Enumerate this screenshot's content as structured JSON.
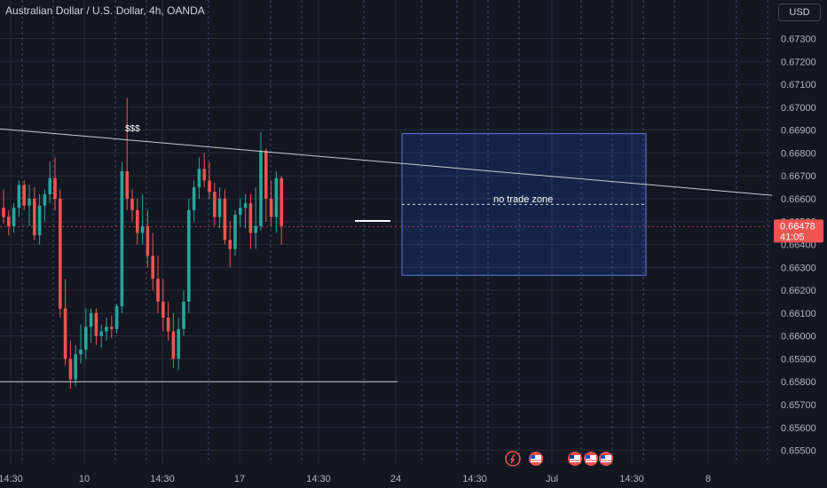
{
  "header": {
    "title": "Australian Dollar / U.S. Dollar, 4h, OANDA",
    "currency": "USD"
  },
  "colors": {
    "background": "#131722",
    "up": "#26a69a",
    "down": "#ef5350",
    "grid": "#2a2e39",
    "session": "#3b4a6b",
    "zone_fill": "#2962ff",
    "zone_border": "#5b7bd5",
    "line": "#c9ccd4",
    "price_tag": "#ef5350"
  },
  "annotations": {
    "trendline_label": "$$$",
    "zone_label": "no trade zone"
  },
  "current_price": {
    "price": "0.66478",
    "countdown": "41:05",
    "value": 0.66478
  },
  "axis_icons": [
    "lightning-icon",
    "us-flag-icon",
    "au-flag-icon",
    "us-flag-icon",
    "us-flag-icon"
  ],
  "chart_data": {
    "type": "candlestick",
    "title": "Australian Dollar / U.S. Dollar, 4h, OANDA",
    "ylim": [
      0.6544,
      0.6736
    ],
    "y_ticks": [
      "0.67300",
      "0.67200",
      "0.67100",
      "0.67000",
      "0.66900",
      "0.66800",
      "0.66700",
      "0.66600",
      "0.66500",
      "0.66400",
      "0.66300",
      "0.66200",
      "0.66100",
      "0.66000",
      "0.65900",
      "0.65800",
      "0.65700",
      "0.65600",
      "0.65500"
    ],
    "y_tick_values": [
      0.673,
      0.672,
      0.671,
      0.67,
      0.669,
      0.668,
      0.667,
      0.666,
      0.665,
      0.664,
      0.663,
      0.662,
      0.661,
      0.66,
      0.659,
      0.658,
      0.657,
      0.656,
      0.655
    ],
    "x_ticks": [
      "14:30",
      "10",
      "14:30",
      "17",
      "14:30",
      "24",
      "14:30",
      "Jul",
      "14:30",
      "8"
    ],
    "grid": true,
    "trendline_start": 0.66905,
    "trendline_end": 0.66615,
    "support_level": 0.658,
    "zone_price_top": 0.66885,
    "zone_price_bottom": 0.66265,
    "zone_mid_price": 0.66575,
    "candles": [
      [
        0.6656,
        0.6664,
        0.6649,
        0.6652
      ],
      [
        0.6652,
        0.6655,
        0.6644,
        0.6648
      ],
      [
        0.6648,
        0.6658,
        0.6645,
        0.6656
      ],
      [
        0.6656,
        0.6668,
        0.6652,
        0.6666
      ],
      [
        0.6666,
        0.6668,
        0.6655,
        0.6657
      ],
      [
        0.6657,
        0.6666,
        0.6648,
        0.666
      ],
      [
        0.666,
        0.6665,
        0.6642,
        0.6644
      ],
      [
        0.6644,
        0.6662,
        0.664,
        0.6657
      ],
      [
        0.6657,
        0.6664,
        0.665,
        0.6662
      ],
      [
        0.6662,
        0.6676,
        0.6658,
        0.6669
      ],
      [
        0.6669,
        0.6678,
        0.6655,
        0.666
      ],
      [
        0.666,
        0.6664,
        0.6608,
        0.6612
      ],
      [
        0.6612,
        0.6625,
        0.6587,
        0.659
      ],
      [
        0.659,
        0.6598,
        0.6577,
        0.6581
      ],
      [
        0.6581,
        0.6596,
        0.6578,
        0.6592
      ],
      [
        0.6592,
        0.6605,
        0.6588,
        0.6594
      ],
      [
        0.6594,
        0.6612,
        0.659,
        0.6604
      ],
      [
        0.6604,
        0.6612,
        0.6597,
        0.661
      ],
      [
        0.661,
        0.6612,
        0.6596,
        0.66
      ],
      [
        0.66,
        0.6605,
        0.6595,
        0.6602
      ],
      [
        0.6602,
        0.6608,
        0.6598,
        0.6604
      ],
      [
        0.6604,
        0.6609,
        0.6599,
        0.6603
      ],
      [
        0.6603,
        0.6614,
        0.6601,
        0.6613
      ],
      [
        0.6613,
        0.6676,
        0.661,
        0.6672
      ],
      [
        0.6672,
        0.6704,
        0.6655,
        0.666
      ],
      [
        0.666,
        0.6664,
        0.665,
        0.6655
      ],
      [
        0.6655,
        0.666,
        0.664,
        0.6645
      ],
      [
        0.6645,
        0.6662,
        0.664,
        0.6648
      ],
      [
        0.6648,
        0.6655,
        0.663,
        0.6635
      ],
      [
        0.6635,
        0.6645,
        0.662,
        0.6625
      ],
      [
        0.6625,
        0.6635,
        0.661,
        0.6615
      ],
      [
        0.6615,
        0.6625,
        0.6602,
        0.6608
      ],
      [
        0.6608,
        0.6615,
        0.6598,
        0.6602
      ],
      [
        0.6602,
        0.661,
        0.6586,
        0.659
      ],
      [
        0.659,
        0.6608,
        0.6585,
        0.6603
      ],
      [
        0.6603,
        0.662,
        0.66,
        0.6615
      ],
      [
        0.6615,
        0.666,
        0.661,
        0.6655
      ],
      [
        0.6655,
        0.6668,
        0.665,
        0.6665
      ],
      [
        0.6665,
        0.6678,
        0.666,
        0.6673
      ],
      [
        0.6673,
        0.668,
        0.6665,
        0.6668
      ],
      [
        0.6668,
        0.6676,
        0.666,
        0.6663
      ],
      [
        0.6663,
        0.6667,
        0.6648,
        0.6652
      ],
      [
        0.6652,
        0.6665,
        0.6647,
        0.666
      ],
      [
        0.666,
        0.6664,
        0.664,
        0.6642
      ],
      [
        0.6642,
        0.665,
        0.663,
        0.6638
      ],
      [
        0.6638,
        0.6655,
        0.6635,
        0.6653
      ],
      [
        0.6653,
        0.666,
        0.6648,
        0.6656
      ],
      [
        0.6656,
        0.6662,
        0.6647,
        0.6658
      ],
      [
        0.6658,
        0.6662,
        0.6638,
        0.6645
      ],
      [
        0.6645,
        0.6665,
        0.6638,
        0.6648
      ],
      [
        0.6648,
        0.6689,
        0.6646,
        0.6681
      ],
      [
        0.6681,
        0.6682,
        0.665,
        0.666
      ],
      [
        0.666,
        0.6668,
        0.6648,
        0.6652
      ],
      [
        0.6652,
        0.6672,
        0.6645,
        0.6669
      ],
      [
        0.6669,
        0.667,
        0.664,
        0.6648
      ]
    ]
  }
}
